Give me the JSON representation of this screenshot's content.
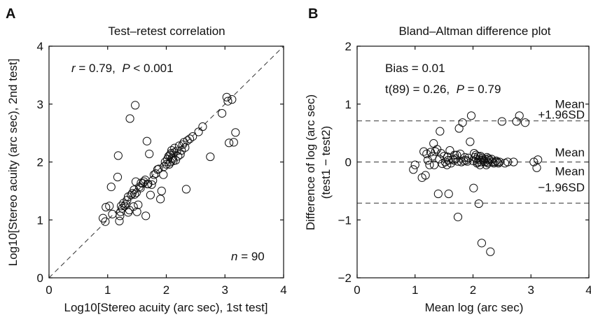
{
  "chart_data": [
    {
      "type": "scatter",
      "panel": "A",
      "title": "Test–retest correlation",
      "xlabel": "Log10[Stereo acuity (arc sec), 1st test]",
      "ylabel": "Log10[Stereo acuity (arc sec), 2nd test]",
      "xlim": [
        0,
        4
      ],
      "ylim": [
        0,
        4
      ],
      "xticks": [
        "0",
        "1",
        "2",
        "3",
        "4"
      ],
      "yticks": [
        "0",
        "1",
        "2",
        "3",
        "4"
      ],
      "annotations": {
        "r_prefix": "r",
        "r_value": " = 0.79,  ",
        "p_prefix": "P",
        "p_value": " < 0.001",
        "n_prefix": "n",
        "n_value": " = 90"
      },
      "reference_line": "identity (y = x), dashed",
      "grid": false,
      "points": [
        [
          0.92,
          1.03
        ],
        [
          0.96,
          0.97
        ],
        [
          0.97,
          1.22
        ],
        [
          1.03,
          1.24
        ],
        [
          1.06,
          1.57
        ],
        [
          1.08,
          1.1
        ],
        [
          1.17,
          1.74
        ],
        [
          1.18,
          2.11
        ],
        [
          1.2,
          0.98
        ],
        [
          1.21,
          1.07
        ],
        [
          1.22,
          1.14
        ],
        [
          1.23,
          1.24
        ],
        [
          1.25,
          1.2
        ],
        [
          1.27,
          1.29
        ],
        [
          1.29,
          1.24
        ],
        [
          1.31,
          1.27
        ],
        [
          1.33,
          1.34
        ],
        [
          1.35,
          1.4
        ],
        [
          1.35,
          1.13
        ],
        [
          1.37,
          1.17
        ],
        [
          1.38,
          2.75
        ],
        [
          1.4,
          1.43
        ],
        [
          1.42,
          1.46
        ],
        [
          1.44,
          1.23
        ],
        [
          1.45,
          1.52
        ],
        [
          1.46,
          1.44
        ],
        [
          1.47,
          2.98
        ],
        [
          1.48,
          1.66
        ],
        [
          1.49,
          1.47
        ],
        [
          1.5,
          1.14
        ],
        [
          1.52,
          1.26
        ],
        [
          1.54,
          1.57
        ],
        [
          1.56,
          1.55
        ],
        [
          1.57,
          1.64
        ],
        [
          1.6,
          1.63
        ],
        [
          1.62,
          1.66
        ],
        [
          1.64,
          1.69
        ],
        [
          1.65,
          1.07
        ],
        [
          1.67,
          2.36
        ],
        [
          1.69,
          1.62
        ],
        [
          1.71,
          2.14
        ],
        [
          1.73,
          1.43
        ],
        [
          1.75,
          1.61
        ],
        [
          1.77,
          1.68
        ],
        [
          1.79,
          1.78
        ],
        [
          1.85,
          1.87
        ],
        [
          1.87,
          1.88
        ],
        [
          1.9,
          1.36
        ],
        [
          1.92,
          1.5
        ],
        [
          1.95,
          1.78
        ],
        [
          1.96,
          1.92
        ],
        [
          1.98,
          2.0
        ],
        [
          2.0,
          1.96
        ],
        [
          2.02,
          2.05
        ],
        [
          2.04,
          2.1
        ],
        [
          2.05,
          1.96
        ],
        [
          2.06,
          2.12
        ],
        [
          2.07,
          2.0
        ],
        [
          2.08,
          2.15
        ],
        [
          2.09,
          2.2
        ],
        [
          2.1,
          2.07
        ],
        [
          2.11,
          2.05
        ],
        [
          2.13,
          2.16
        ],
        [
          2.14,
          2.24
        ],
        [
          2.16,
          2.03
        ],
        [
          2.18,
          2.19
        ],
        [
          2.2,
          2.1
        ],
        [
          2.22,
          2.28
        ],
        [
          2.24,
          2.13
        ],
        [
          2.26,
          2.2
        ],
        [
          2.28,
          2.3
        ],
        [
          2.3,
          2.34
        ],
        [
          2.32,
          2.25
        ],
        [
          2.34,
          1.53
        ],
        [
          2.36,
          2.37
        ],
        [
          2.4,
          2.4
        ],
        [
          2.45,
          2.44
        ],
        [
          2.55,
          2.52
        ],
        [
          2.62,
          2.61
        ],
        [
          2.75,
          2.09
        ],
        [
          2.95,
          2.84
        ],
        [
          3.03,
          3.12
        ],
        [
          3.05,
          3.05
        ],
        [
          3.07,
          2.33
        ],
        [
          3.12,
          3.08
        ],
        [
          3.15,
          2.34
        ],
        [
          3.18,
          2.51
        ],
        [
          1.68,
          1.62
        ],
        [
          1.82,
          1.8
        ],
        [
          2.12,
          2.02
        ]
      ]
    },
    {
      "type": "scatter",
      "panel": "B",
      "title": "Bland–Altman difference plot",
      "xlabel": "Mean log (arc sec)",
      "ylabel": "Difference of log (arc sec)",
      "ylabel2": "(test1 − test2)",
      "xlim": [
        0,
        4
      ],
      "ylim": [
        -2,
        2
      ],
      "xticks": [
        "0",
        "1",
        "2",
        "3",
        "4"
      ],
      "yticks": [
        "2",
        "1",
        "0",
        "−1",
        "−2"
      ],
      "annotations": {
        "bias": "Bias = 0.01",
        "t_prefix": "t(89) = 0.26,  ",
        "p_prefix": "P",
        "p_value": " = 0.79"
      },
      "reference_lines": [
        {
          "label_line1": "Mean",
          "label_line2": "+1.96SD",
          "y": 0.71
        },
        {
          "label_line1": "Mean",
          "label_line2": "",
          "y": 0.0
        },
        {
          "label_line1": "Mean",
          "label_line2": "−1.96SD",
          "y": -0.71
        }
      ],
      "grid": false,
      "points": [
        [
          0.97,
          -0.13
        ],
        [
          1.0,
          -0.05
        ],
        [
          1.12,
          -0.27
        ],
        [
          1.15,
          0.18
        ],
        [
          1.18,
          -0.23
        ],
        [
          1.2,
          0.14
        ],
        [
          1.22,
          0.03
        ],
        [
          1.25,
          -0.05
        ],
        [
          1.27,
          0.17
        ],
        [
          1.3,
          0.1
        ],
        [
          1.32,
          0.32
        ],
        [
          1.35,
          0.18
        ],
        [
          1.38,
          0.22
        ],
        [
          1.4,
          -0.55
        ],
        [
          1.42,
          0.05
        ],
        [
          1.43,
          0.53
        ],
        [
          1.45,
          0.15
        ],
        [
          1.47,
          -0.03
        ],
        [
          1.5,
          0.1
        ],
        [
          1.52,
          0.0
        ],
        [
          1.55,
          -0.05
        ],
        [
          1.57,
          0.03
        ],
        [
          1.58,
          -0.55
        ],
        [
          1.6,
          0.2
        ],
        [
          1.62,
          -0.02
        ],
        [
          1.65,
          0.05
        ],
        [
          1.67,
          0.03
        ],
        [
          1.68,
          0.12
        ],
        [
          1.7,
          0.06
        ],
        [
          1.72,
          0.12
        ],
        [
          1.74,
          -0.95
        ],
        [
          1.76,
          0.58
        ],
        [
          1.78,
          0.14
        ],
        [
          1.8,
          0.0
        ],
        [
          1.82,
          0.68
        ],
        [
          1.84,
          0.02
        ],
        [
          1.86,
          0.08
        ],
        [
          1.88,
          0.03
        ],
        [
          1.9,
          0.01
        ],
        [
          1.95,
          0.35
        ],
        [
          1.97,
          0.8
        ],
        [
          2.0,
          0.02
        ],
        [
          2.01,
          -0.45
        ],
        [
          2.03,
          0.08
        ],
        [
          2.05,
          0.12
        ],
        [
          2.06,
          0.05
        ],
        [
          2.07,
          -0.02
        ],
        [
          2.08,
          0.0
        ],
        [
          2.09,
          0.1
        ],
        [
          2.1,
          -0.72
        ],
        [
          2.11,
          0.04
        ],
        [
          2.12,
          -0.05
        ],
        [
          2.13,
          0.1
        ],
        [
          2.14,
          0.0
        ],
        [
          2.15,
          -1.4
        ],
        [
          2.17,
          0.04
        ],
        [
          2.18,
          0.02
        ],
        [
          2.2,
          0.0
        ],
        [
          2.22,
          0.05
        ],
        [
          2.23,
          -0.05
        ],
        [
          2.24,
          0.08
        ],
        [
          2.25,
          0.0
        ],
        [
          2.26,
          -0.02
        ],
        [
          2.28,
          0.03
        ],
        [
          2.3,
          -1.55
        ],
        [
          2.32,
          0.05
        ],
        [
          2.34,
          0.0
        ],
        [
          2.36,
          -0.02
        ],
        [
          2.38,
          0.0
        ],
        [
          2.4,
          0.02
        ],
        [
          2.42,
          0.0
        ],
        [
          2.44,
          -0.02
        ],
        [
          2.46,
          0.0
        ],
        [
          2.5,
          0.7
        ],
        [
          2.55,
          -0.02
        ],
        [
          2.6,
          0.0
        ],
        [
          2.7,
          0.0
        ],
        [
          2.75,
          0.7
        ],
        [
          2.8,
          0.8
        ],
        [
          2.9,
          0.68
        ],
        [
          3.05,
          0.0
        ],
        [
          3.1,
          -0.1
        ],
        [
          3.12,
          0.04
        ],
        [
          1.33,
          -0.05
        ],
        [
          1.92,
          0.07
        ],
        [
          2.02,
          0.15
        ],
        [
          2.16,
          0.07
        ],
        [
          1.56,
          0.09
        ],
        [
          1.74,
          0.01
        ],
        [
          2.27,
          0.06
        ]
      ]
    }
  ],
  "panels": {
    "a": {
      "letter": "A"
    },
    "b": {
      "letter": "B"
    }
  }
}
